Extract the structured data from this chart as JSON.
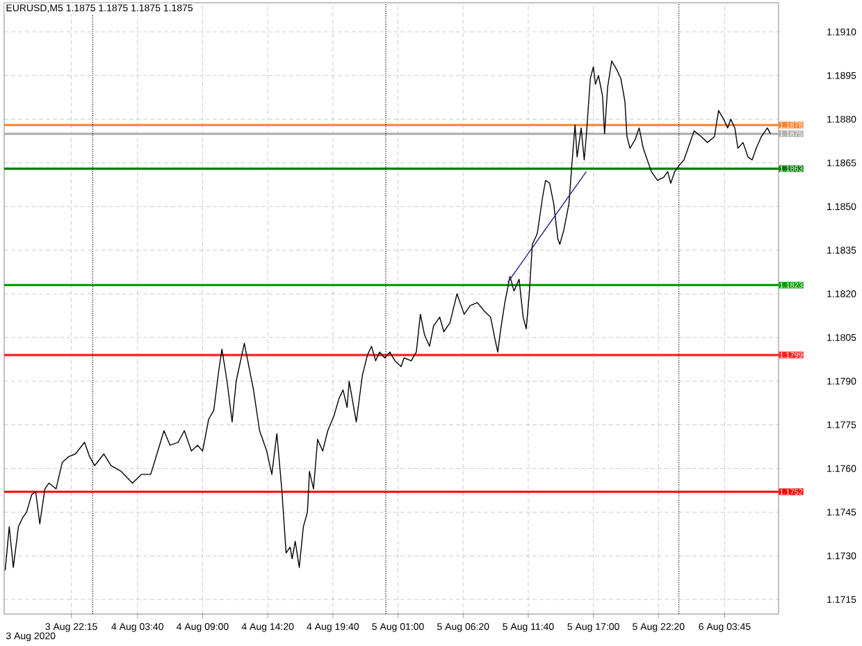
{
  "chart_data": {
    "type": "line",
    "title": "EURUSD,M5  1.1875 1.1875 1.1875 1.1875",
    "x": [
      "2020-08-03T16:50",
      "2020-08-03T17:10",
      "2020-08-03T17:30",
      "2020-08-03T17:55",
      "2020-08-03T18:15",
      "2020-08-03T18:35",
      "2020-08-03T19:00",
      "2020-08-03T19:20",
      "2020-08-03T19:40",
      "2020-08-03T20:05",
      "2020-08-03T20:25",
      "2020-08-03T21:00",
      "2020-08-03T21:30",
      "2020-08-03T22:00",
      "2020-08-03T22:35",
      "2020-08-03T23:20",
      "2020-08-03T23:45",
      "2020-08-04T00:10",
      "2020-08-04T00:55",
      "2020-08-04T01:30",
      "2020-08-04T02:20",
      "2020-08-04T03:15",
      "2020-08-04T04:00",
      "2020-08-04T04:45",
      "2020-08-04T05:20",
      "2020-08-04T05:50",
      "2020-08-04T06:20",
      "2020-08-04T07:00",
      "2020-08-04T07:30",
      "2020-08-04T08:05",
      "2020-08-04T08:35",
      "2020-08-04T09:00",
      "2020-08-04T09:30",
      "2020-08-04T09:55",
      "2020-08-04T10:20",
      "2020-08-04T10:35",
      "2020-08-04T11:00",
      "2020-08-04T11:25",
      "2020-08-04T11:45",
      "2020-08-04T12:25",
      "2020-08-04T13:10",
      "2020-08-04T13:40",
      "2020-08-04T14:15",
      "2020-08-04T14:40",
      "2020-08-04T15:05",
      "2020-08-04T15:30",
      "2020-08-04T15:50",
      "2020-08-04T16:10",
      "2020-08-04T16:20",
      "2020-08-04T16:35",
      "2020-08-04T16:55",
      "2020-08-04T17:15",
      "2020-08-04T17:35",
      "2020-08-04T17:45",
      "2020-08-04T18:05",
      "2020-08-04T18:25",
      "2020-08-04T18:50",
      "2020-08-04T19:15",
      "2020-08-04T19:45",
      "2020-08-04T20:10",
      "2020-08-04T20:30",
      "2020-08-04T20:50",
      "2020-08-04T21:00",
      "2020-08-04T21:35",
      "2020-08-04T22:05",
      "2020-08-04T22:30",
      "2020-08-04T22:50",
      "2020-08-04T23:10",
      "2020-08-04T23:30",
      "2020-08-04T23:55",
      "2020-08-05T00:20",
      "2020-08-05T00:45",
      "2020-08-05T01:15",
      "2020-08-05T01:30",
      "2020-08-05T02:05",
      "2020-08-05T02:30",
      "2020-08-05T02:50",
      "2020-08-05T03:10",
      "2020-08-05T03:35",
      "2020-08-05T03:55",
      "2020-08-05T04:25",
      "2020-08-05T04:45",
      "2020-08-05T05:15",
      "2020-08-05T05:50",
      "2020-08-05T06:25",
      "2020-08-05T06:55",
      "2020-08-05T07:30",
      "2020-08-05T08:05",
      "2020-08-05T08:35",
      "2020-08-05T08:55",
      "2020-08-05T09:10",
      "2020-08-05T09:25",
      "2020-08-05T09:45",
      "2020-08-05T10:10",
      "2020-08-05T10:30",
      "2020-08-05T10:55",
      "2020-08-05T11:15",
      "2020-08-05T11:30",
      "2020-08-05T11:45",
      "2020-08-05T12:00",
      "2020-08-05T12:20",
      "2020-08-05T12:25",
      "2020-08-05T12:50",
      "2020-08-05T13:05",
      "2020-08-05T13:25",
      "2020-08-05T13:45",
      "2020-08-05T14:05",
      "2020-08-05T14:15",
      "2020-08-05T14:35",
      "2020-08-05T15:00",
      "2020-08-05T15:15",
      "2020-08-05T15:30",
      "2020-08-05T15:40",
      "2020-08-05T16:00",
      "2020-08-05T16:15",
      "2020-08-05T16:25",
      "2020-08-05T16:45",
      "2020-08-05T17:00",
      "2020-08-05T17:10",
      "2020-08-05T17:25",
      "2020-08-05T17:45",
      "2020-08-05T17:55",
      "2020-08-05T18:10",
      "2020-08-05T18:30",
      "2020-08-05T18:55",
      "2020-08-05T19:15",
      "2020-08-05T19:35",
      "2020-08-05T19:45",
      "2020-08-05T20:00",
      "2020-08-05T20:25",
      "2020-08-05T20:45",
      "2020-08-05T21:05",
      "2020-08-05T21:25",
      "2020-08-05T21:45",
      "2020-08-05T22:15",
      "2020-08-05T22:45",
      "2020-08-05T23:05",
      "2020-08-05T23:20",
      "2020-08-05T23:40",
      "2020-08-06T00:00",
      "2020-08-06T00:25",
      "2020-08-06T00:45",
      "2020-08-06T01:15",
      "2020-08-06T01:50",
      "2020-08-06T02:20",
      "2020-08-06T02:55",
      "2020-08-06T03:15",
      "2020-08-06T03:40",
      "2020-08-06T04:00",
      "2020-08-06T04:15",
      "2020-08-06T04:35",
      "2020-08-06T04:50",
      "2020-08-06T05:15",
      "2020-08-06T05:40",
      "2020-08-06T06:00",
      "2020-08-06T06:20",
      "2020-08-06T06:45",
      "2020-08-06T07:15",
      "2020-08-06T07:30"
    ],
    "series": [
      {
        "color": "#000000",
        "values": [
          1.1725,
          1.174,
          1.1726,
          1.174,
          1.1743,
          1.1745,
          1.1751,
          1.1752,
          1.1741,
          1.1753,
          1.1755,
          1.1753,
          1.1762,
          1.1764,
          1.1765,
          1.1769,
          1.1764,
          1.1761,
          1.1765,
          1.1761,
          1.1759,
          1.1755,
          1.1758,
          1.1758,
          1.1766,
          1.1773,
          1.1768,
          1.1769,
          1.1773,
          1.1766,
          1.1768,
          1.1766,
          1.1777,
          1.178,
          1.1794,
          1.1801,
          1.179,
          1.1776,
          1.179,
          1.1803,
          1.1787,
          1.1773,
          1.1766,
          1.1758,
          1.1772,
          1.1752,
          1.1731,
          1.1733,
          1.1729,
          1.1735,
          1.1726,
          1.174,
          1.1745,
          1.1759,
          1.1753,
          1.177,
          1.1766,
          1.1773,
          1.1778,
          1.1784,
          1.1787,
          1.1781,
          1.179,
          1.1776,
          1.1792,
          1.1799,
          1.1802,
          1.1797,
          1.18,
          1.1798,
          1.18,
          1.1797,
          1.1795,
          1.1798,
          1.1797,
          1.18,
          1.1813,
          1.1806,
          1.1802,
          1.1809,
          1.1812,
          1.1807,
          1.181,
          1.182,
          1.1813,
          1.1816,
          1.1817,
          1.1814,
          1.1812,
          1.1805,
          1.18,
          1.1808,
          1.1817,
          1.1826,
          1.1821,
          1.1825,
          1.1812,
          1.1808,
          1.182,
          1.1837,
          1.184,
          1.1841,
          1.1853,
          1.1859,
          1.1858,
          1.1851,
          1.1839,
          1.1837,
          1.1842,
          1.1851,
          1.1865,
          1.1878,
          1.1867,
          1.1877,
          1.1866,
          1.1874,
          1.1894,
          1.1898,
          1.1892,
          1.1895,
          1.1888,
          1.1875,
          1.1891,
          1.19,
          1.1897,
          1.1894,
          1.1886,
          1.1874,
          1.187,
          1.1873,
          1.1877,
          1.187,
          1.1866,
          1.1862,
          1.1859,
          1.186,
          1.1862,
          1.1858,
          1.1862,
          1.1864,
          1.1866,
          1.187,
          1.1876,
          1.1874,
          1.1872,
          1.1874,
          1.1883,
          1.188,
          1.1877,
          1.188,
          1.1877,
          1.187,
          1.1872,
          1.1867,
          1.1866,
          1.187,
          1.1874,
          1.1877,
          1.1875
        ]
      },
      {
        "type": "line",
        "color": "#22228a",
        "x": [
          "2020-08-05T10:00",
          "2020-08-05T16:25"
        ],
        "values": [
          1.1824,
          1.1862
        ]
      }
    ],
    "xlim": [
      "2020-08-03T16:45",
      "2020-08-06T08:10"
    ],
    "ylim": [
      1.171,
      1.192
    ],
    "annotations": [
      "3 Aug 2020"
    ],
    "xticks": [
      {
        "value": "2020-08-03T22:15",
        "label": "3 Aug 22:15"
      },
      {
        "value": "2020-08-04T03:40",
        "label": "4 Aug 03:40"
      },
      {
        "value": "2020-08-04T09:00",
        "label": "4 Aug 09:00"
      },
      {
        "value": "2020-08-04T14:20",
        "label": "4 Aug 14:20"
      },
      {
        "value": "2020-08-04T19:40",
        "label": "4 Aug 19:40"
      },
      {
        "value": "2020-08-05T01:00",
        "label": "5 Aug 01:00"
      },
      {
        "value": "2020-08-05T06:20",
        "label": "5 Aug 06:20"
      },
      {
        "value": "2020-08-05T11:40",
        "label": "5 Aug 11:40"
      },
      {
        "value": "2020-08-05T17:00",
        "label": "5 Aug 17:00"
      },
      {
        "value": "2020-08-05T22:20",
        "label": "5 Aug 22:20"
      },
      {
        "value": "2020-08-06T03:45",
        "label": "6 Aug 03:45"
      }
    ],
    "yticks": [
      {
        "value": 1.1715,
        "label": "1.1715"
      },
      {
        "value": 1.173,
        "label": "1.1730"
      },
      {
        "value": 1.1745,
        "label": "1.1745"
      },
      {
        "value": 1.176,
        "label": "1.1760"
      },
      {
        "value": 1.1775,
        "label": "1.1775"
      },
      {
        "value": 1.179,
        "label": "1.1790"
      },
      {
        "value": 1.1805,
        "label": "1.1805"
      },
      {
        "value": 1.182,
        "label": "1.1820"
      },
      {
        "value": 1.1835,
        "label": "1.1835"
      },
      {
        "value": 1.185,
        "label": "1.1850"
      },
      {
        "value": 1.1865,
        "label": "1.1865"
      },
      {
        "value": 1.188,
        "label": "1.1880"
      },
      {
        "value": 1.1895,
        "label": "1.1895"
      },
      {
        "value": 1.191,
        "label": "1.1910"
      }
    ],
    "ref_lines": [
      {
        "axis": "y",
        "value": 1.1878,
        "label": "1.1878",
        "color": "#ff7f27"
      },
      {
        "axis": "y",
        "value": 1.1875,
        "label": "1.1875",
        "color": "#b0b0b0"
      },
      {
        "axis": "y",
        "value": 1.1863,
        "label": "1.1863",
        "color": "#007a00"
      },
      {
        "axis": "y",
        "value": 1.1823,
        "label": "1.1823",
        "color": "#00a000"
      },
      {
        "axis": "y",
        "value": 1.1799,
        "label": "1.1799",
        "color": "#ff2020"
      },
      {
        "axis": "y",
        "value": 1.1752,
        "label": "1.1752",
        "color": "#ff0000"
      },
      {
        "axis": "x",
        "value": "2020-08-04",
        "color": "#000000",
        "line_style": "dotted"
      },
      {
        "axis": "x",
        "value": "2020-08-05",
        "color": "#000000",
        "line_style": "dotted"
      },
      {
        "axis": "x",
        "value": "2020-08-06",
        "color": "#000000",
        "line_style": "dotted"
      }
    ],
    "grid": true
  }
}
